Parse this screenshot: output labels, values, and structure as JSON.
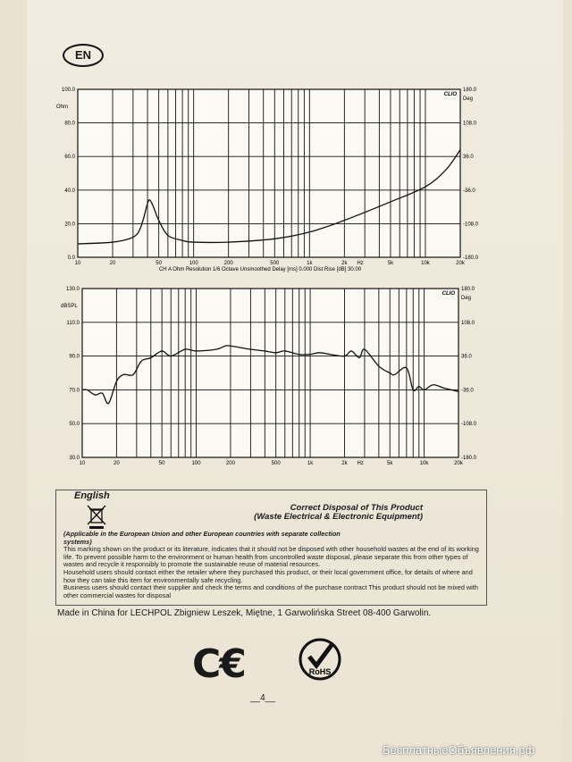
{
  "badge": "EN",
  "charts": [
    {
      "type": "line",
      "brand": "CLIO",
      "yunit": "Ohm",
      "y2unit": "Deg",
      "yticks": [
        "0.0",
        "20.0",
        "40.0",
        "60.0",
        "80.0",
        "100.0"
      ],
      "y2ticks": [
        "-180.0",
        "-108.0",
        "-36.0",
        "36.0",
        "108.0",
        "180.0"
      ],
      "xticks": [
        "10",
        "20",
        "50",
        "100",
        "200",
        "500",
        "1k",
        "2k",
        "5k",
        "10k",
        "20k"
      ],
      "xunit": "Hz",
      "footer": "CH A   Ohm   Resolution 1/6 Octave   Unsmoothed   Delay [ms] 0.000   Dist Rise [dB] 30.00"
    },
    {
      "type": "line",
      "brand": "CLIO",
      "yunit": "dBSPL",
      "y2unit": "Deg",
      "yticks": [
        "30.0",
        "50.0",
        "70.0",
        "90.0",
        "110.0",
        "130.0"
      ],
      "y2ticks": [
        "-180.0",
        "-108.0",
        "-36.0",
        "36.0",
        "108.0",
        "180.0"
      ],
      "xticks": [
        "10",
        "20",
        "50",
        "100",
        "200",
        "500",
        "1k",
        "2k",
        "5k",
        "10k",
        "20k"
      ],
      "xunit": "Hz"
    }
  ],
  "chart_data": [
    {
      "type": "line",
      "xscale": "log",
      "xlim": [
        10,
        20000
      ],
      "ylim": [
        0,
        100
      ],
      "ylabel": "Ohm",
      "grid": true,
      "x": [
        10,
        20,
        30,
        35,
        40,
        42,
        45,
        50,
        60,
        80,
        100,
        200,
        500,
        1000,
        2000,
        5000,
        10000,
        15000,
        20000
      ],
      "y": [
        8,
        9,
        12,
        18,
        32,
        34,
        30,
        22,
        13,
        10,
        9,
        9,
        11,
        15,
        22,
        33,
        42,
        52,
        64
      ]
    },
    {
      "type": "line",
      "xscale": "log",
      "xlim": [
        10,
        20000
      ],
      "ylim": [
        30,
        130
      ],
      "ylabel": "dBSPL",
      "grid": true,
      "x": [
        10,
        11,
        13,
        15,
        17,
        20,
        23,
        28,
        33,
        40,
        50,
        60,
        80,
        100,
        150,
        180,
        200,
        300,
        400,
        500,
        600,
        800,
        1000,
        1200,
        1500,
        2000,
        2300,
        2700,
        3000,
        4000,
        5000,
        5500,
        7000,
        8000,
        9000,
        10000,
        12000,
        15000,
        20000
      ],
      "y": [
        70,
        70,
        67,
        68,
        62,
        75,
        79,
        79,
        87,
        89,
        93,
        90,
        94,
        93,
        94,
        96,
        96,
        94,
        93,
        92,
        93,
        91,
        91,
        92,
        91,
        90,
        93,
        89,
        94,
        84,
        80,
        79,
        83,
        70,
        72,
        70,
        73,
        71,
        69
      ]
    }
  ],
  "disposal": {
    "language": "English",
    "title_line1": "Correct Disposal of This Product",
    "title_line2": "(Waste Electrical & Electronic Equipment)",
    "applicable": "(Applicable in the European Union and other European countries with separate collection systems)",
    "p1": "This marking shown on the product or its literature, indicates that it should not be disposed with other household wastes at the end of its working life. To prevent possible harm to the environment or human health from uncontrolled waste disposal, please separate this from other types of wastes and recycle it responsibly to promote the sustainable reuse of material resources.",
    "p2": "Household users should contact either the retailer where they purchased this product, or their local government office, for details of where and how they can take this item for environmentally safe recycling.",
    "p3": "Business users should contact their supplier and check the terms and conditions of the purchase contract This product should not be mixed with other commercial wastes for disposal"
  },
  "made_in": "Made in China for LECHPOL Zbigniew Leszek, Miętne, 1 Garwolińska Street 08-400 Garwolin.",
  "ce_mark": "CE",
  "rohs_label": "RoHS",
  "page_number": "__4__",
  "watermark": "БесплатныеОбъявления.рф"
}
